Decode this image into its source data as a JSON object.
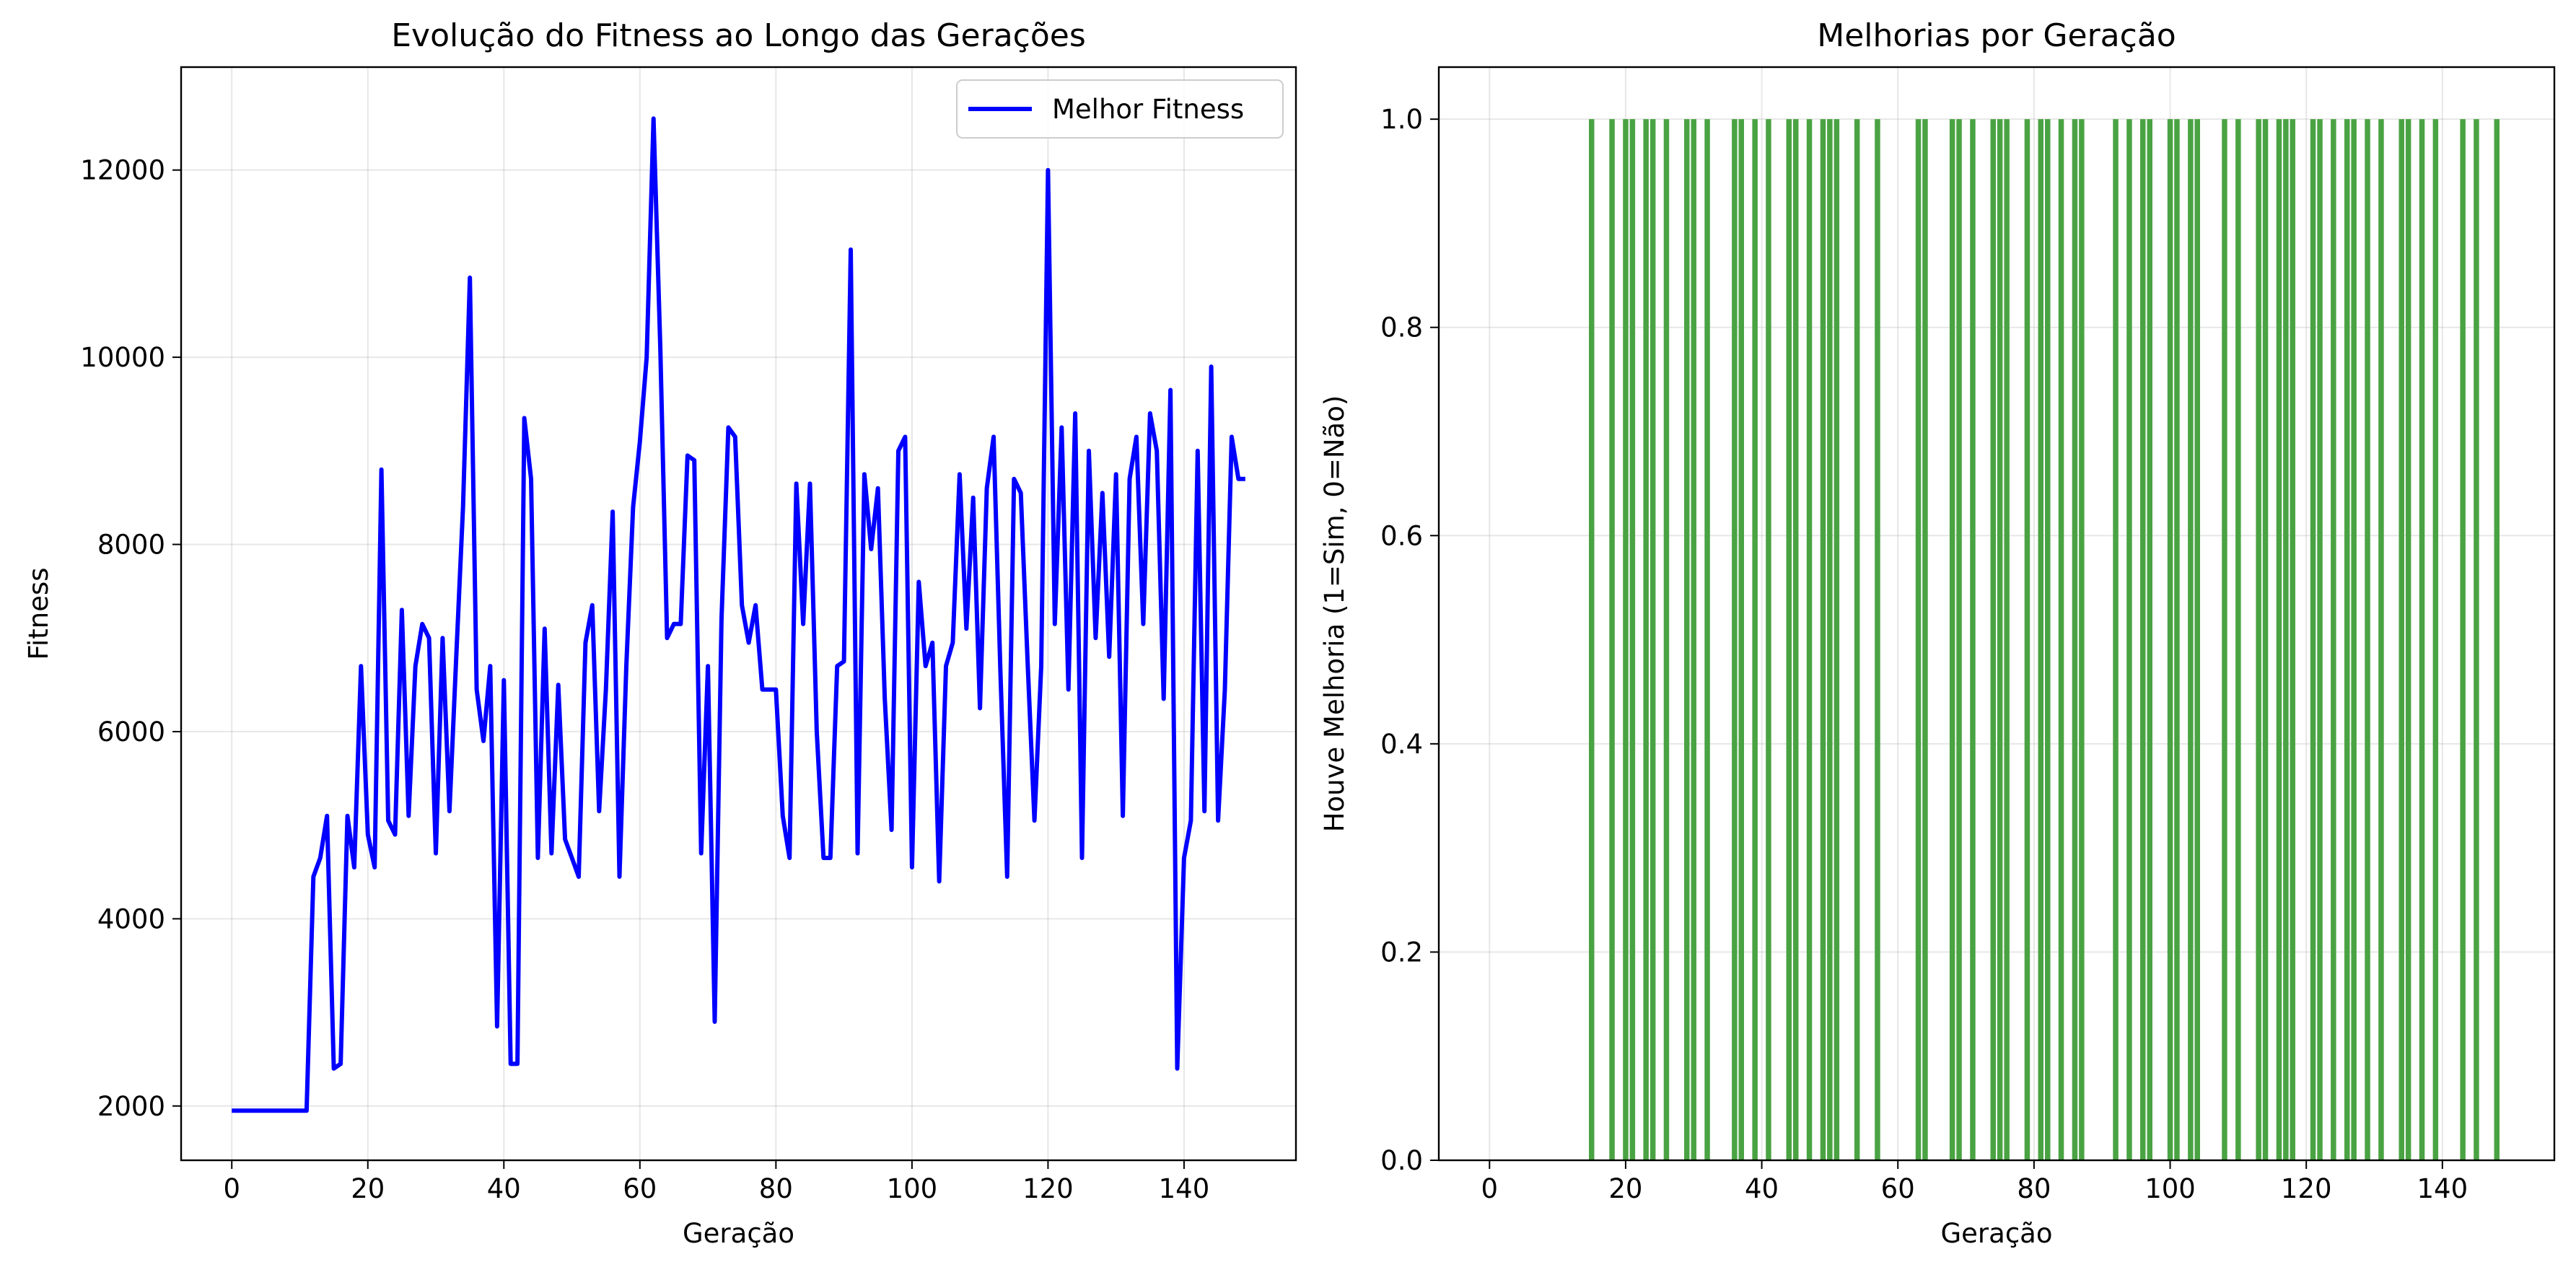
{
  "chart_data": [
    {
      "type": "line",
      "title": "Evolução do Fitness ao Longo das Gerações",
      "xlabel": "Geração",
      "ylabel": "Fitness",
      "xlim": [
        -7.45,
        156.45
      ],
      "ylim": [
        1420,
        13100
      ],
      "xticks": [
        0,
        20,
        40,
        60,
        80,
        100,
        120,
        140
      ],
      "yticks": [
        2000,
        4000,
        6000,
        8000,
        10000,
        12000
      ],
      "grid": true,
      "legend_position": "upper-right",
      "series": [
        {
          "name": "Melhor Fitness",
          "color": "#0000ff",
          "x": [
            0,
            1,
            2,
            3,
            4,
            5,
            6,
            7,
            8,
            9,
            10,
            11,
            12,
            13,
            14,
            15,
            16,
            17,
            18,
            19,
            20,
            21,
            22,
            23,
            24,
            25,
            26,
            27,
            28,
            29,
            30,
            31,
            32,
            33,
            34,
            35,
            36,
            37,
            38,
            39,
            40,
            41,
            42,
            43,
            44,
            45,
            46,
            47,
            48,
            49,
            50,
            51,
            52,
            53,
            54,
            55,
            56,
            57,
            58,
            59,
            60,
            61,
            62,
            63,
            64,
            65,
            66,
            67,
            68,
            69,
            70,
            71,
            72,
            73,
            74,
            75,
            76,
            77,
            78,
            79,
            80,
            81,
            82,
            83,
            84,
            85,
            86,
            87,
            88,
            89,
            90,
            91,
            92,
            93,
            94,
            95,
            96,
            97,
            98,
            99,
            100,
            101,
            102,
            103,
            104,
            105,
            106,
            107,
            108,
            109,
            110,
            111,
            112,
            113,
            114,
            115,
            116,
            117,
            118,
            119,
            120,
            121,
            122,
            123,
            124,
            125,
            126,
            127,
            128,
            129,
            130,
            131,
            132,
            133,
            134,
            135,
            136,
            137,
            138,
            139,
            140,
            141,
            142,
            143,
            144,
            145,
            146,
            147,
            148,
            149
          ],
          "y": [
            1950,
            1950,
            1950,
            1950,
            1950,
            1950,
            1950,
            1950,
            1950,
            1950,
            1950,
            1950,
            4450,
            4650,
            5100,
            2400,
            2450,
            5100,
            4550,
            6700,
            4900,
            4550,
            8800,
            5050,
            4900,
            7300,
            5100,
            6700,
            7150,
            7000,
            4700,
            7000,
            5150,
            6800,
            8400,
            10850,
            6450,
            5900,
            6700,
            2850,
            6550,
            2450,
            2450,
            9350,
            8700,
            4650,
            7100,
            4700,
            6500,
            4850,
            4650,
            4450,
            6950,
            7350,
            5150,
            6450,
            8350,
            4450,
            6700,
            8400,
            9100,
            10000,
            12550,
            10100,
            7000,
            7150,
            7150,
            8950,
            8900,
            4700,
            6700,
            2900,
            7200,
            9250,
            9150,
            7350,
            6950,
            7350,
            6450,
            6450,
            6450,
            5100,
            4650,
            8650,
            7150,
            8650,
            6000,
            4650,
            4650,
            6700,
            6750,
            11150,
            4700,
            8750,
            7950,
            8600,
            6350,
            4950,
            9000,
            9150,
            4550,
            7600,
            6700,
            6950,
            4400,
            6700,
            6950,
            8750,
            7100,
            8500,
            6250,
            8600,
            9150,
            6650,
            4450,
            8700,
            8550,
            6750,
            5050,
            6700,
            12000,
            7150,
            9250,
            6450,
            9400,
            4650,
            9000,
            7000,
            8550,
            6800,
            8750,
            5100,
            8700,
            9150,
            7150,
            9400,
            9000,
            6350,
            9650,
            2400,
            4650,
            5050,
            9000,
            5150,
            9900,
            5050,
            6450,
            9150,
            8700,
            8700
          ]
        }
      ]
    },
    {
      "type": "bar",
      "title": "Melhorias por Geração",
      "xlabel": "Geração",
      "ylabel": "Houve Melhoria (1=Sim, 0=Não)",
      "xlim": [
        -7.45,
        156.45
      ],
      "ylim": [
        0,
        1.05
      ],
      "xticks": [
        0,
        20,
        40,
        60,
        80,
        100,
        120,
        140
      ],
      "yticks": [
        0.0,
        0.2,
        0.4,
        0.6,
        0.8,
        1.0
      ],
      "ytick_labels": [
        "0.0",
        "0.2",
        "0.4",
        "0.6",
        "0.8",
        "1.0"
      ],
      "grid": true,
      "color": "#4aa343",
      "x": [
        15,
        18,
        20,
        21,
        23,
        24,
        26,
        29,
        30,
        32,
        36,
        37,
        39,
        41,
        44,
        45,
        47,
        49,
        50,
        51,
        54,
        57,
        63,
        64,
        68,
        69,
        71,
        74,
        75,
        76,
        79,
        81,
        82,
        84,
        86,
        87,
        92,
        94,
        96,
        97,
        100,
        101,
        103,
        104,
        108,
        110,
        113,
        114,
        116,
        117,
        118,
        121,
        122,
        124,
        126,
        127,
        129,
        131,
        134,
        135,
        137,
        139,
        143,
        145,
        148
      ],
      "values": [
        1,
        1,
        1,
        1,
        1,
        1,
        1,
        1,
        1,
        1,
        1,
        1,
        1,
        1,
        1,
        1,
        1,
        1,
        1,
        1,
        1,
        1,
        1,
        1,
        1,
        1,
        1,
        1,
        1,
        1,
        1,
        1,
        1,
        1,
        1,
        1,
        1,
        1,
        1,
        1,
        1,
        1,
        1,
        1,
        1,
        1,
        1,
        1,
        1,
        1,
        1,
        1,
        1,
        1,
        1,
        1,
        1,
        1,
        1,
        1,
        1,
        1,
        1,
        1,
        1
      ]
    }
  ]
}
